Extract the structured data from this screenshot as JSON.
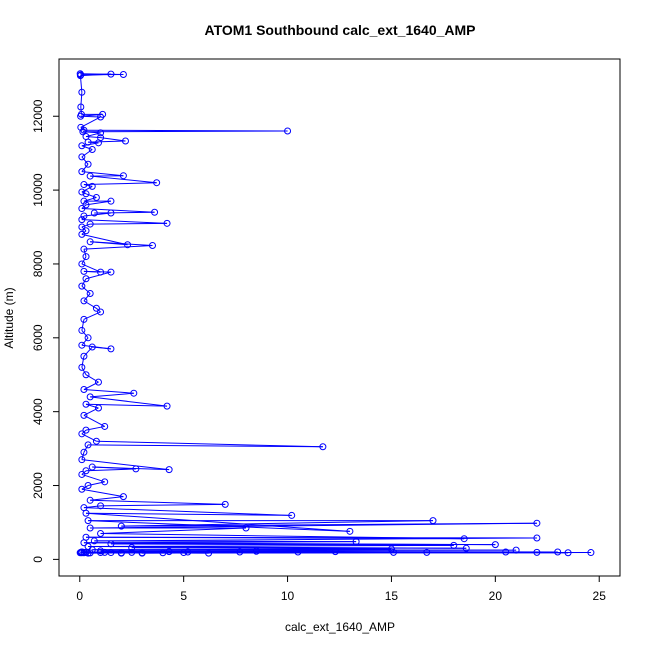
{
  "chart_data": {
    "type": "line",
    "title": "ATOM1 Southbound calc_ext_1640_AMP",
    "xlabel": "calc_ext_1640_AMP",
    "ylabel": "Altitude (m)",
    "xlim": [
      -1,
      26
    ],
    "ylim": [
      -450,
      13550
    ],
    "xticks": [
      0,
      5,
      10,
      15,
      20,
      25
    ],
    "yticks": [
      0,
      2000,
      4000,
      6000,
      8000,
      10000,
      12000
    ],
    "grid": false,
    "series_color": "#0000ff",
    "series": [
      {
        "points": [
          [
            0.02,
            13150
          ],
          [
            2.1,
            13130
          ],
          [
            0.05,
            13120
          ],
          [
            1.5,
            13140
          ],
          [
            0.03,
            13100
          ],
          [
            0.1,
            12650
          ],
          [
            0.05,
            12250
          ],
          [
            0.08,
            12050
          ],
          [
            1.1,
            12050
          ],
          [
            0.04,
            12000
          ],
          [
            1.0,
            11980
          ],
          [
            0.05,
            11700
          ],
          [
            0.2,
            11620
          ],
          [
            10.0,
            11600
          ],
          [
            0.15,
            11580
          ],
          [
            1.0,
            11550
          ],
          [
            0.3,
            11450
          ],
          [
            1.0,
            11420
          ],
          [
            2.2,
            11330
          ],
          [
            0.4,
            11300
          ],
          [
            0.9,
            11280
          ],
          [
            0.1,
            11200
          ],
          [
            0.6,
            11100
          ],
          [
            0.1,
            10900
          ],
          [
            0.4,
            10700
          ],
          [
            0.1,
            10500
          ],
          [
            2.1,
            10390
          ],
          [
            0.5,
            10380
          ],
          [
            3.7,
            10200
          ],
          [
            0.2,
            10150
          ],
          [
            0.6,
            10100
          ],
          [
            0.1,
            9950
          ],
          [
            0.3,
            9900
          ],
          [
            0.8,
            9800
          ],
          [
            0.2,
            9700
          ],
          [
            1.5,
            9700
          ],
          [
            0.3,
            9600
          ],
          [
            0.1,
            9500
          ],
          [
            3.6,
            9400
          ],
          [
            0.7,
            9380
          ],
          [
            1.5,
            9380
          ],
          [
            0.2,
            9300
          ],
          [
            0.1,
            9200
          ],
          [
            4.2,
            9100
          ],
          [
            0.5,
            9080
          ],
          [
            0.1,
            9000
          ],
          [
            0.3,
            8900
          ],
          [
            0.1,
            8800
          ],
          [
            2.3,
            8520
          ],
          [
            0.5,
            8600
          ],
          [
            3.5,
            8500
          ],
          [
            0.2,
            8400
          ],
          [
            0.3,
            8200
          ],
          [
            0.1,
            8000
          ],
          [
            1.0,
            7780
          ],
          [
            0.2,
            7800
          ],
          [
            1.5,
            7780
          ],
          [
            0.3,
            7600
          ],
          [
            0.1,
            7400
          ],
          [
            0.5,
            7200
          ],
          [
            0.2,
            7000
          ],
          [
            0.8,
            6800
          ],
          [
            1.0,
            6700
          ],
          [
            0.2,
            6500
          ],
          [
            0.1,
            6200
          ],
          [
            0.4,
            6000
          ],
          [
            0.1,
            5800
          ],
          [
            1.5,
            5700
          ],
          [
            0.6,
            5750
          ],
          [
            0.2,
            5500
          ],
          [
            0.1,
            5200
          ],
          [
            0.3,
            5000
          ],
          [
            0.9,
            4800
          ],
          [
            0.2,
            4600
          ],
          [
            2.6,
            4500
          ],
          [
            0.5,
            4400
          ],
          [
            4.2,
            4150
          ],
          [
            0.3,
            4200
          ],
          [
            0.9,
            4100
          ],
          [
            0.2,
            3900
          ],
          [
            1.2,
            3600
          ],
          [
            0.3,
            3500
          ],
          [
            0.1,
            3400
          ],
          [
            0.8,
            3200
          ],
          [
            11.7,
            3050
          ],
          [
            0.4,
            3100
          ],
          [
            0.2,
            2900
          ],
          [
            0.1,
            2700
          ],
          [
            4.3,
            2430
          ],
          [
            0.6,
            2500
          ],
          [
            2.7,
            2450
          ],
          [
            0.3,
            2400
          ],
          [
            0.1,
            2300
          ],
          [
            1.2,
            2100
          ],
          [
            0.4,
            2000
          ],
          [
            0.1,
            1900
          ],
          [
            2.1,
            1700
          ],
          [
            0.5,
            1600
          ],
          [
            7.0,
            1490
          ],
          [
            1.0,
            1450
          ],
          [
            0.2,
            1400
          ],
          [
            10.2,
            1190
          ],
          [
            0.3,
            1250
          ],
          [
            13.0,
            760
          ],
          [
            0.4,
            1050
          ],
          [
            17.0,
            1050
          ],
          [
            2.0,
            900
          ],
          [
            22.0,
            980
          ],
          [
            0.5,
            850
          ],
          [
            8.0,
            850
          ],
          [
            1.0,
            700
          ],
          [
            18.5,
            560
          ],
          [
            0.3,
            600
          ],
          [
            22.0,
            580
          ],
          [
            0.7,
            500
          ],
          [
            13.3,
            480
          ],
          [
            0.2,
            450
          ],
          [
            20.0,
            400
          ],
          [
            1.5,
            420
          ],
          [
            18.0,
            380
          ],
          [
            0.4,
            350
          ],
          [
            18.6,
            300
          ],
          [
            2.5,
            320
          ],
          [
            15.0,
            280
          ],
          [
            0.6,
            260
          ],
          [
            21.0,
            250
          ],
          [
            1.0,
            230
          ],
          [
            23.0,
            200
          ],
          [
            0.3,
            190
          ],
          [
            24.6,
            185
          ],
          [
            2.0,
            180
          ],
          [
            23.5,
            180
          ],
          [
            0.5,
            175
          ],
          [
            22.0,
            190
          ],
          [
            4.0,
            180
          ],
          [
            20.5,
            200
          ],
          [
            1.0,
            185
          ],
          [
            16.7,
            190
          ],
          [
            3.0,
            170
          ],
          [
            15.1,
            190
          ],
          [
            0.2,
            180
          ],
          [
            12.3,
            210
          ],
          [
            5.0,
            185
          ],
          [
            10.5,
            200
          ],
          [
            0.4,
            170
          ],
          [
            8.5,
            220
          ],
          [
            2.5,
            190
          ],
          [
            7.7,
            200
          ],
          [
            0.1,
            180
          ],
          [
            6.2,
            170
          ],
          [
            1.5,
            185
          ],
          [
            5.2,
            200
          ],
          [
            0.2,
            190
          ],
          [
            4.3,
            210
          ],
          [
            0.1,
            200
          ],
          [
            3.0,
            180
          ],
          [
            0.05,
            190
          ],
          [
            2.0,
            170
          ],
          [
            0.1,
            200
          ],
          [
            1.2,
            190
          ],
          [
            0.02,
            180
          ]
        ]
      }
    ]
  }
}
